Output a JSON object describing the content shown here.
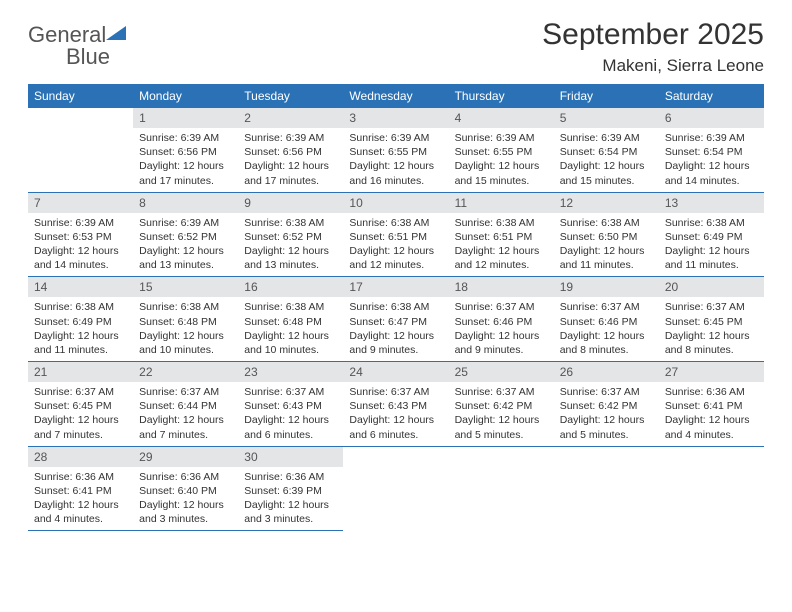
{
  "logo": {
    "general": "General",
    "blue": "Blue"
  },
  "header": {
    "title": "September 2025",
    "location": "Makeni, Sierra Leone"
  },
  "weekdays": [
    "Sunday",
    "Monday",
    "Tuesday",
    "Wednesday",
    "Thursday",
    "Friday",
    "Saturday"
  ],
  "colors": {
    "header_bg": "#2a72b5",
    "daynum_bg": "#e3e5e7",
    "rule": "#2a72b5"
  },
  "layout": {
    "start_offset": 1,
    "days_in_month": 30
  },
  "days": [
    {
      "n": 1,
      "sr": "6:39 AM",
      "ss": "6:56 PM",
      "dl": "12 hours and 17 minutes."
    },
    {
      "n": 2,
      "sr": "6:39 AM",
      "ss": "6:56 PM",
      "dl": "12 hours and 17 minutes."
    },
    {
      "n": 3,
      "sr": "6:39 AM",
      "ss": "6:55 PM",
      "dl": "12 hours and 16 minutes."
    },
    {
      "n": 4,
      "sr": "6:39 AM",
      "ss": "6:55 PM",
      "dl": "12 hours and 15 minutes."
    },
    {
      "n": 5,
      "sr": "6:39 AM",
      "ss": "6:54 PM",
      "dl": "12 hours and 15 minutes."
    },
    {
      "n": 6,
      "sr": "6:39 AM",
      "ss": "6:54 PM",
      "dl": "12 hours and 14 minutes."
    },
    {
      "n": 7,
      "sr": "6:39 AM",
      "ss": "6:53 PM",
      "dl": "12 hours and 14 minutes."
    },
    {
      "n": 8,
      "sr": "6:39 AM",
      "ss": "6:52 PM",
      "dl": "12 hours and 13 minutes."
    },
    {
      "n": 9,
      "sr": "6:38 AM",
      "ss": "6:52 PM",
      "dl": "12 hours and 13 minutes."
    },
    {
      "n": 10,
      "sr": "6:38 AM",
      "ss": "6:51 PM",
      "dl": "12 hours and 12 minutes."
    },
    {
      "n": 11,
      "sr": "6:38 AM",
      "ss": "6:51 PM",
      "dl": "12 hours and 12 minutes."
    },
    {
      "n": 12,
      "sr": "6:38 AM",
      "ss": "6:50 PM",
      "dl": "12 hours and 11 minutes."
    },
    {
      "n": 13,
      "sr": "6:38 AM",
      "ss": "6:49 PM",
      "dl": "12 hours and 11 minutes."
    },
    {
      "n": 14,
      "sr": "6:38 AM",
      "ss": "6:49 PM",
      "dl": "12 hours and 11 minutes."
    },
    {
      "n": 15,
      "sr": "6:38 AM",
      "ss": "6:48 PM",
      "dl": "12 hours and 10 minutes."
    },
    {
      "n": 16,
      "sr": "6:38 AM",
      "ss": "6:48 PM",
      "dl": "12 hours and 10 minutes."
    },
    {
      "n": 17,
      "sr": "6:38 AM",
      "ss": "6:47 PM",
      "dl": "12 hours and 9 minutes."
    },
    {
      "n": 18,
      "sr": "6:37 AM",
      "ss": "6:46 PM",
      "dl": "12 hours and 9 minutes."
    },
    {
      "n": 19,
      "sr": "6:37 AM",
      "ss": "6:46 PM",
      "dl": "12 hours and 8 minutes."
    },
    {
      "n": 20,
      "sr": "6:37 AM",
      "ss": "6:45 PM",
      "dl": "12 hours and 8 minutes."
    },
    {
      "n": 21,
      "sr": "6:37 AM",
      "ss": "6:45 PM",
      "dl": "12 hours and 7 minutes."
    },
    {
      "n": 22,
      "sr": "6:37 AM",
      "ss": "6:44 PM",
      "dl": "12 hours and 7 minutes."
    },
    {
      "n": 23,
      "sr": "6:37 AM",
      "ss": "6:43 PM",
      "dl": "12 hours and 6 minutes."
    },
    {
      "n": 24,
      "sr": "6:37 AM",
      "ss": "6:43 PM",
      "dl": "12 hours and 6 minutes."
    },
    {
      "n": 25,
      "sr": "6:37 AM",
      "ss": "6:42 PM",
      "dl": "12 hours and 5 minutes."
    },
    {
      "n": 26,
      "sr": "6:37 AM",
      "ss": "6:42 PM",
      "dl": "12 hours and 5 minutes."
    },
    {
      "n": 27,
      "sr": "6:36 AM",
      "ss": "6:41 PM",
      "dl": "12 hours and 4 minutes."
    },
    {
      "n": 28,
      "sr": "6:36 AM",
      "ss": "6:41 PM",
      "dl": "12 hours and 4 minutes."
    },
    {
      "n": 29,
      "sr": "6:36 AM",
      "ss": "6:40 PM",
      "dl": "12 hours and 3 minutes."
    },
    {
      "n": 30,
      "sr": "6:36 AM",
      "ss": "6:39 PM",
      "dl": "12 hours and 3 minutes."
    }
  ],
  "labels": {
    "sunrise": "Sunrise:",
    "sunset": "Sunset:",
    "daylight": "Daylight:"
  }
}
